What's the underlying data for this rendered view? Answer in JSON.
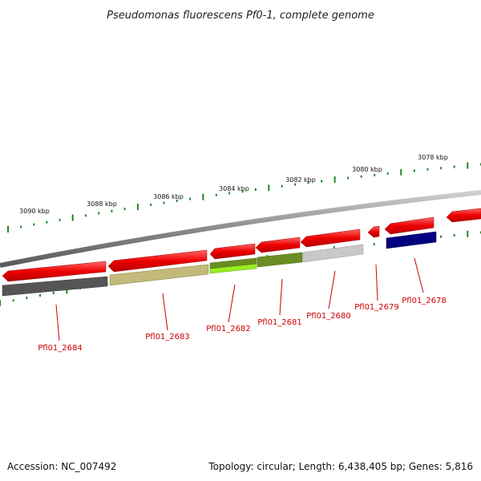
{
  "title": "Pseudomonas fluorescens Pf0-1, complete genome",
  "footer": {
    "accession": "Accession: NC_007492",
    "stats": "Topology: circular; Length: 6,438,405 bp; Genes: 5,816"
  },
  "scale_labels": [
    "3090 kbp",
    "3088 kbp",
    "3086 kbp",
    "3084 kbp",
    "3082 kbp",
    "3080 kbp",
    "3078 kbp"
  ],
  "gene_labels": [
    "Pfl01_2684",
    "Pfl01_2683",
    "Pfl01_2682",
    "Pfl01_2681",
    "Pfl01_2680",
    "Pfl01_2679",
    "Pfl01_2678"
  ],
  "colors": {
    "cds": "#ee0000",
    "backbone": "#888888",
    "tick": "#228822",
    "label": "#cc0000",
    "feature_dark_gray": "#555555",
    "feature_khaki": "#c2b97a",
    "feature_lime": "#99ee22",
    "feature_olive": "#6b8e23",
    "feature_light_gray": "#c8c8c8",
    "feature_navy": "#000080"
  }
}
